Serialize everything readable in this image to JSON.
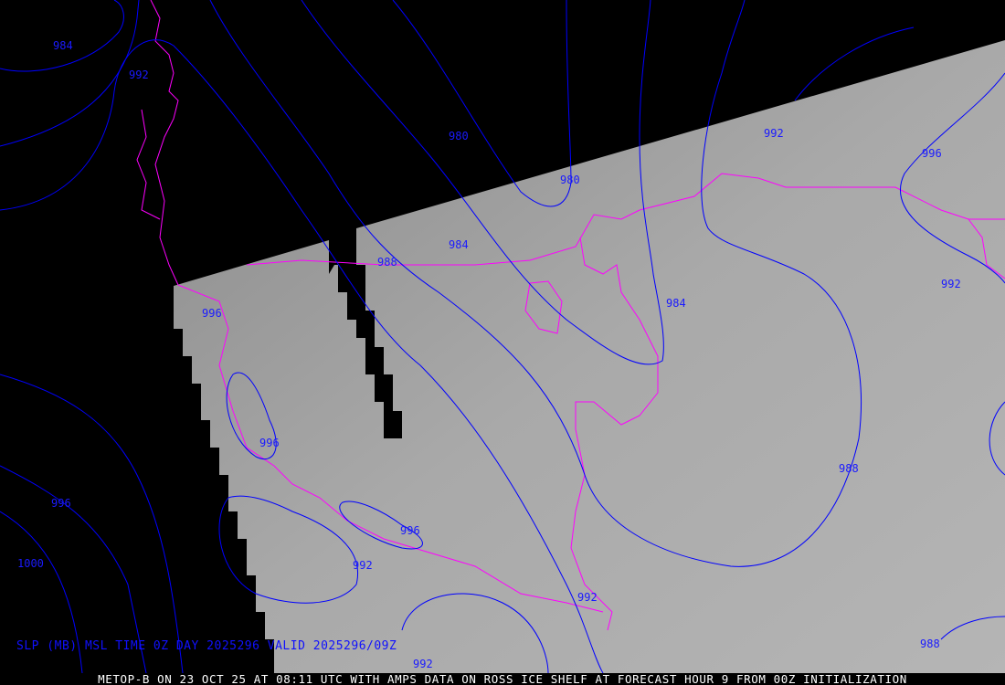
{
  "map": {
    "overlay_title": "SLP (MB) MSL TIME 0Z DAY 2025296 VALID 2025296/09Z",
    "footer": "METOP-B ON 23 OCT 25 AT 08:11 UTC WITH AMPS DATA ON ROSS ICE SHELF AT FORECAST HOUR 9 FROM 00Z INITIALIZATION",
    "colors": {
      "contour": "#0000ff",
      "coastline": "#ff00ff",
      "background": "#000000",
      "imagery": "#a8a8a8"
    },
    "contour_labels": [
      "984",
      "992",
      "980",
      "980",
      "992",
      "996",
      "984",
      "988",
      "996",
      "984",
      "992",
      "996",
      "988",
      "996",
      "996",
      "1000",
      "992",
      "992",
      "992",
      "988"
    ]
  }
}
